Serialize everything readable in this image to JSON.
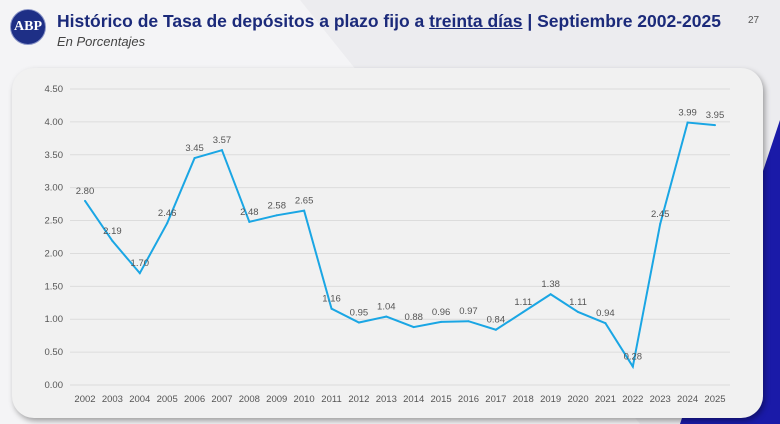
{
  "header": {
    "logo_text": "ABP",
    "title_prefix": "Histórico de Tasa de depósitos a plazo fijo a ",
    "title_underlined": "treinta días",
    "title_suffix": " | Septiembre 2002-2025",
    "subtitle": "En Porcentajes",
    "page_number": "27"
  },
  "colors": {
    "line": "#1aa6e4",
    "title": "#1b2a7a",
    "accent_dark": "#1a1aa8"
  },
  "chart_data": {
    "type": "line",
    "title": "",
    "xlabel": "",
    "ylabel": "",
    "ylim": [
      0,
      4.5
    ],
    "yticks": [
      "0.00",
      "0.50",
      "1.00",
      "1.50",
      "2.00",
      "2.50",
      "3.00",
      "3.50",
      "4.00",
      "4.50"
    ],
    "grid": true,
    "categories": [
      "2002",
      "2003",
      "2004",
      "2005",
      "2006",
      "2007",
      "2008",
      "2009",
      "2010",
      "2011",
      "2012",
      "2013",
      "2014",
      "2015",
      "2016",
      "2017",
      "2018",
      "2019",
      "2020",
      "2021",
      "2022",
      "2023",
      "2024",
      "2025"
    ],
    "values": [
      2.8,
      2.19,
      1.7,
      2.46,
      3.45,
      3.57,
      2.48,
      2.58,
      2.65,
      1.16,
      0.95,
      1.04,
      0.88,
      0.96,
      0.97,
      0.84,
      1.11,
      1.38,
      1.11,
      0.94,
      0.28,
      2.45,
      3.99,
      3.95
    ],
    "labels": [
      "2.80",
      "2.19",
      "1.70",
      "2.46",
      "3.45",
      "3.57",
      "2.48",
      "2.58",
      "2.65",
      "1.16",
      "0.95",
      "1.04",
      "0.88",
      "0.96",
      "0.97",
      "0.84",
      "1.11",
      "1.38",
      "1.11",
      "0.94",
      "0.28",
      "2.45",
      "3.99",
      "3.95"
    ]
  }
}
